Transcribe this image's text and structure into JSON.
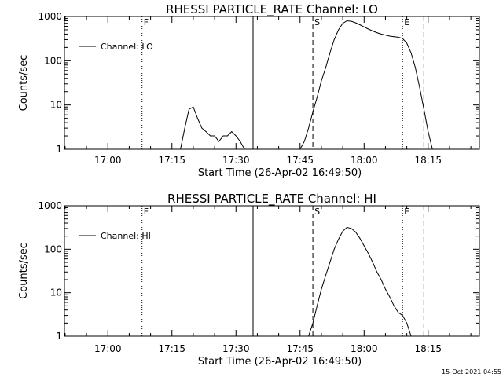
{
  "chart_data": [
    {
      "type": "line",
      "title": "RHESSI PARTICLE_RATE Channel: LO",
      "xlabel": "Start Time (26-Apr-02 16:49:50)",
      "ylabel": "Counts/sec",
      "yscale": "log",
      "ylim": [
        1,
        1000
      ],
      "xlim": [
        "16:49:50",
        "18:27:00"
      ],
      "x_ticks": [
        "17:00",
        "17:15",
        "17:30",
        "17:45",
        "18:00",
        "18:15"
      ],
      "y_ticks": [
        "1",
        "10",
        "100",
        "1000"
      ],
      "legend": {
        "placement": "top-left",
        "label": "Channel: LO"
      },
      "markers": [
        {
          "label": "F",
          "time": "17:08",
          "style": "dotted"
        },
        {
          "label": "",
          "time": "17:34",
          "style": "solid"
        },
        {
          "label": "S",
          "time": "17:48",
          "style": "dashed"
        },
        {
          "label": "E",
          "time": "18:09",
          "style": "dotted"
        },
        {
          "label": "",
          "time": "18:14",
          "style": "dashed"
        },
        {
          "label": "",
          "time": "18:26",
          "style": "dotted"
        }
      ],
      "series": [
        {
          "name": "Channel: LO",
          "points": [
            [
              "17:17",
              1
            ],
            [
              "17:18",
              3
            ],
            [
              "17:19",
              8
            ],
            [
              "17:20",
              9
            ],
            [
              "17:21",
              5
            ],
            [
              "17:22",
              3
            ],
            [
              "17:23",
              2.5
            ],
            [
              "17:24",
              2
            ],
            [
              "17:25",
              2
            ],
            [
              "17:26",
              1.5
            ],
            [
              "17:27",
              2
            ],
            [
              "17:28",
              2
            ],
            [
              "17:29",
              2.5
            ],
            [
              "17:30",
              2
            ],
            [
              "17:31",
              1.5
            ],
            [
              "17:32",
              1
            ],
            [
              "17:45",
              1
            ],
            [
              "17:46",
              1.5
            ],
            [
              "17:47",
              3
            ],
            [
              "17:48",
              7
            ],
            [
              "17:49",
              15
            ],
            [
              "17:50",
              35
            ],
            [
              "17:51",
              70
            ],
            [
              "17:52",
              150
            ],
            [
              "17:53",
              300
            ],
            [
              "17:54",
              500
            ],
            [
              "17:55",
              700
            ],
            [
              "17:56",
              800
            ],
            [
              "17:57",
              780
            ],
            [
              "17:58",
              720
            ],
            [
              "17:59",
              650
            ],
            [
              "18:00",
              580
            ],
            [
              "18:01",
              520
            ],
            [
              "18:02",
              470
            ],
            [
              "18:03",
              430
            ],
            [
              "18:04",
              400
            ],
            [
              "18:05",
              380
            ],
            [
              "18:06",
              360
            ],
            [
              "18:07",
              350
            ],
            [
              "18:08",
              340
            ],
            [
              "18:09",
              320
            ],
            [
              "18:10",
              250
            ],
            [
              "18:11",
              150
            ],
            [
              "18:12",
              70
            ],
            [
              "18:13",
              25
            ],
            [
              "18:14",
              8
            ],
            [
              "18:15",
              2.5
            ],
            [
              "18:16",
              1
            ]
          ]
        }
      ]
    },
    {
      "type": "line",
      "title": "RHESSI PARTICLE_RATE Channel: HI",
      "xlabel": "Start Time (26-Apr-02 16:49:50)",
      "ylabel": "Counts/sec",
      "yscale": "log",
      "ylim": [
        1,
        1000
      ],
      "xlim": [
        "16:49:50",
        "18:27:00"
      ],
      "x_ticks": [
        "17:00",
        "17:15",
        "17:30",
        "17:45",
        "18:00",
        "18:15"
      ],
      "y_ticks": [
        "1",
        "10",
        "100",
        "1000"
      ],
      "legend": {
        "placement": "top-left",
        "label": "Channel: HI"
      },
      "markers": [
        {
          "label": "F",
          "time": "17:08",
          "style": "dotted"
        },
        {
          "label": "",
          "time": "17:34",
          "style": "solid"
        },
        {
          "label": "S",
          "time": "17:48",
          "style": "dashed"
        },
        {
          "label": "E",
          "time": "18:09",
          "style": "dotted"
        },
        {
          "label": "",
          "time": "18:14",
          "style": "dashed"
        },
        {
          "label": "",
          "time": "18:26",
          "style": "dotted"
        }
      ],
      "series": [
        {
          "name": "Channel: HI",
          "points": [
            [
              "17:47",
              1
            ],
            [
              "17:48",
              2
            ],
            [
              "17:49",
              5
            ],
            [
              "17:50",
              12
            ],
            [
              "17:51",
              25
            ],
            [
              "17:52",
              50
            ],
            [
              "17:53",
              100
            ],
            [
              "17:54",
              170
            ],
            [
              "17:55",
              260
            ],
            [
              "17:56",
              320
            ],
            [
              "17:57",
              300
            ],
            [
              "17:58",
              250
            ],
            [
              "17:59",
              180
            ],
            [
              "18:00",
              120
            ],
            [
              "18:01",
              80
            ],
            [
              "18:02",
              50
            ],
            [
              "18:03",
              30
            ],
            [
              "18:04",
              20
            ],
            [
              "18:05",
              12
            ],
            [
              "18:06",
              8
            ],
            [
              "18:07",
              5
            ],
            [
              "18:08",
              3.5
            ],
            [
              "18:09",
              3
            ],
            [
              "18:10",
              2
            ],
            [
              "18:11",
              1
            ]
          ]
        }
      ]
    }
  ],
  "footer": {
    "timestamp": "15-Oct-2021 04:55"
  }
}
